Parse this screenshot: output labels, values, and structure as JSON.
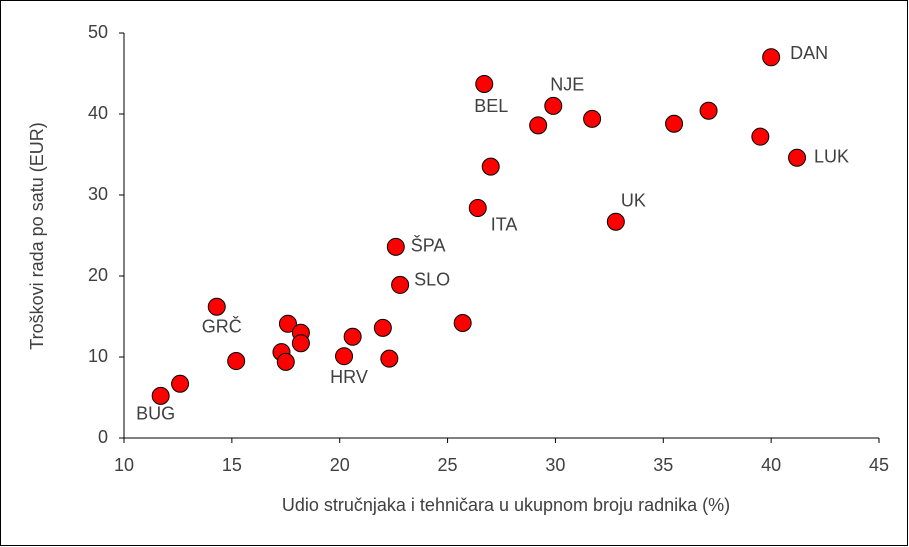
{
  "chart_data": {
    "type": "scatter",
    "x_label": "Udio stručnjaka i tehničara u ukupnom broju radnika (%)",
    "y_label": "Troškovi rada po satu (EUR)",
    "x": [
      11.7,
      12.6,
      14.3,
      15.2,
      17.3,
      17.6,
      17.5,
      18.2,
      18.2,
      20.2,
      20.6,
      22.0,
      22.3,
      22.6,
      22.8,
      25.7,
      26.4,
      26.7,
      27.0,
      29.2,
      29.9,
      31.7,
      32.8,
      35.5,
      37.1,
      39.5,
      40.0,
      41.2
    ],
    "values": [
      5.2,
      6.7,
      16.2,
      9.5,
      10.6,
      14.1,
      9.4,
      13.0,
      11.7,
      10.1,
      12.5,
      13.6,
      9.8,
      23.6,
      18.9,
      14.2,
      28.4,
      43.7,
      33.5,
      38.6,
      41.0,
      39.4,
      26.7,
      38.8,
      40.4,
      37.2,
      47.0,
      34.6
    ],
    "point_labels": [
      "BUG",
      null,
      "GRČ",
      null,
      null,
      null,
      null,
      null,
      null,
      "HRV",
      null,
      null,
      null,
      "ŠPA",
      "SLO",
      null,
      "ITA",
      "BEL",
      null,
      null,
      "NJE",
      null,
      "UK",
      null,
      null,
      null,
      "DAN",
      "LUK"
    ],
    "color": "#ff0000",
    "xlim": [
      10,
      45
    ],
    "xticks": [
      10,
      15,
      20,
      25,
      30,
      35,
      40,
      45
    ],
    "ylim": [
      0,
      50
    ],
    "yticks": [
      0,
      10,
      20,
      30,
      40,
      50
    ],
    "grid": false
  }
}
